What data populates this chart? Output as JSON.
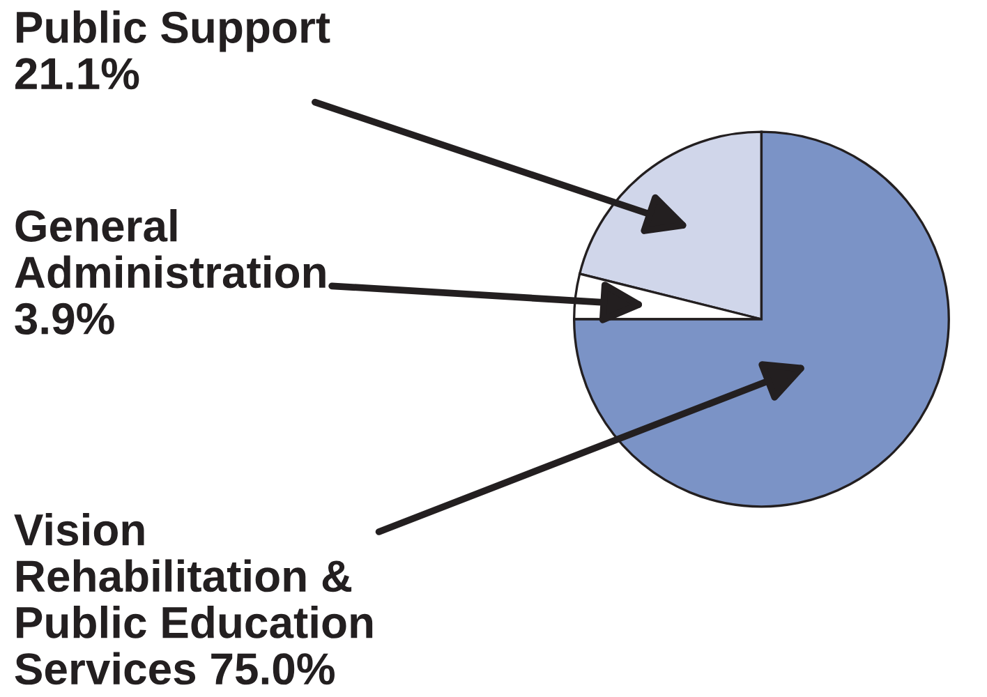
{
  "chart_data": {
    "type": "pie",
    "categories": [
      "Public Support",
      "General\nAdministration",
      "Vision\nRehabilitation &\nPublic Education\nServices"
    ],
    "values": [
      21.1,
      3.9,
      75.0
    ],
    "value_labels": [
      "21.1%",
      "3.9%",
      "75.0%"
    ],
    "colors": [
      "#d0d6ea",
      "#ffffff",
      "#7b93c6"
    ]
  }
}
